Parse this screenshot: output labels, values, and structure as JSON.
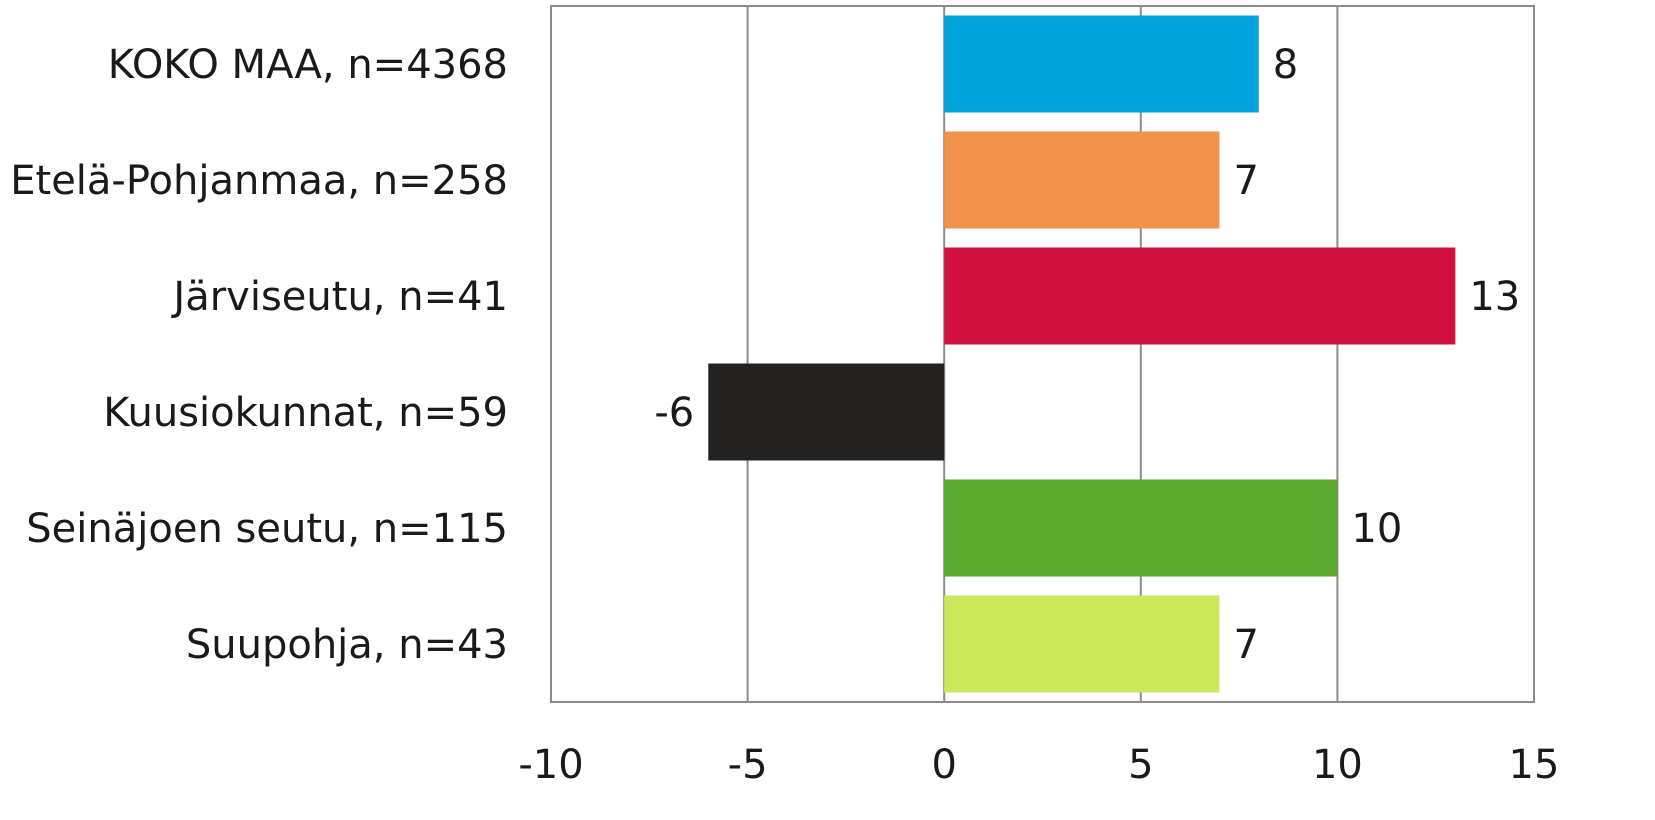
{
  "chart_data": {
    "type": "bar",
    "orientation": "horizontal",
    "categories": [
      "KOKO MAA, n=4368",
      "Etelä-Pohjanmaa, n=258",
      "Järviseutu, n=41",
      "Kuusiokunnat, n=59",
      "Seinäjoen seutu, n=115",
      "Suupohja, n=43"
    ],
    "values": [
      8,
      7,
      13,
      -6,
      10,
      7
    ],
    "data_labels": [
      "8",
      "7",
      "13",
      "-6",
      "10",
      "7"
    ],
    "bar_colors": [
      "#00a3dc",
      "#f0924a",
      "#d0103d",
      "#232220",
      "#59aa2e",
      "#cbe85a"
    ],
    "xlim": [
      -10,
      15
    ],
    "xticks": [
      -10,
      -5,
      0,
      5,
      10,
      15
    ],
    "xtick_labels": [
      "-10",
      "-5",
      "0",
      "5",
      "10",
      "15"
    ],
    "grid": true,
    "gridline_color": "#8c8c8c",
    "title": "",
    "xlabel": "",
    "ylabel": ""
  }
}
